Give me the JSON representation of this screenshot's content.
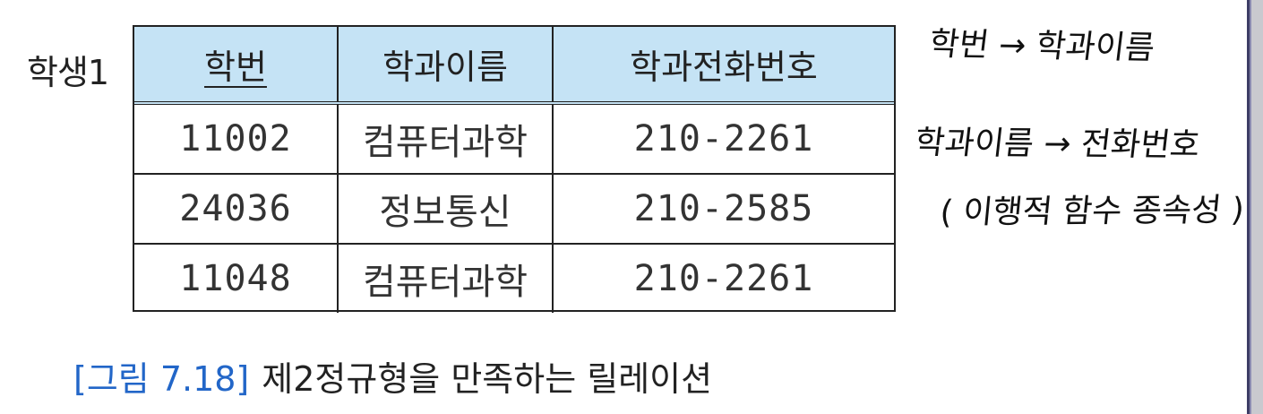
{
  "relation_name": "학생1",
  "table": {
    "headers": [
      {
        "label": "학번",
        "primary_key": true
      },
      {
        "label": "학과이름",
        "primary_key": false
      },
      {
        "label": "학과전화번호",
        "primary_key": false
      }
    ],
    "rows": [
      [
        "11002",
        "컴퓨터과학",
        "210-2261"
      ],
      [
        "24036",
        "정보통신",
        "210-2585"
      ],
      [
        "11048",
        "컴퓨터과학",
        "210-2261"
      ]
    ]
  },
  "caption": {
    "label": "[그림 7.18]",
    "text": "제2정규형을 만족하는 릴레이션"
  },
  "handwritten_notes": [
    "학번 → 학과이름",
    "학과이름 → 전화번호",
    "( 이행적 함수 종속성 )"
  ],
  "colors": {
    "header_fill": "#c5e3f5",
    "caption_label": "#2266c8",
    "right_border": "#3d3d66"
  }
}
